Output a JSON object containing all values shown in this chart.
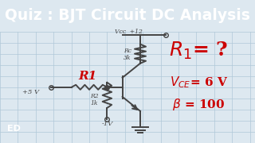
{
  "title": "Quiz : BJT Circuit DC Analysis",
  "title_bg": "#2c3e7a",
  "title_fg": "#ffffff",
  "body_bg": "#dde8f0",
  "grid_color": "#b0c8d8",
  "r1_label": "R1",
  "r1_value_label": "R1= ?",
  "rc_label": "Rc\n3k",
  "r2_label": "R2\n1k",
  "vcc_label": "Vcc  +12",
  "v5_label": "+5 V",
  "vm1_label": "-1V",
  "vce_label": "V_CE= 6 V",
  "beta_label": "β = 100",
  "red_color": "#cc0000",
  "dark_color": "#222222",
  "body_line_color": "#444444"
}
